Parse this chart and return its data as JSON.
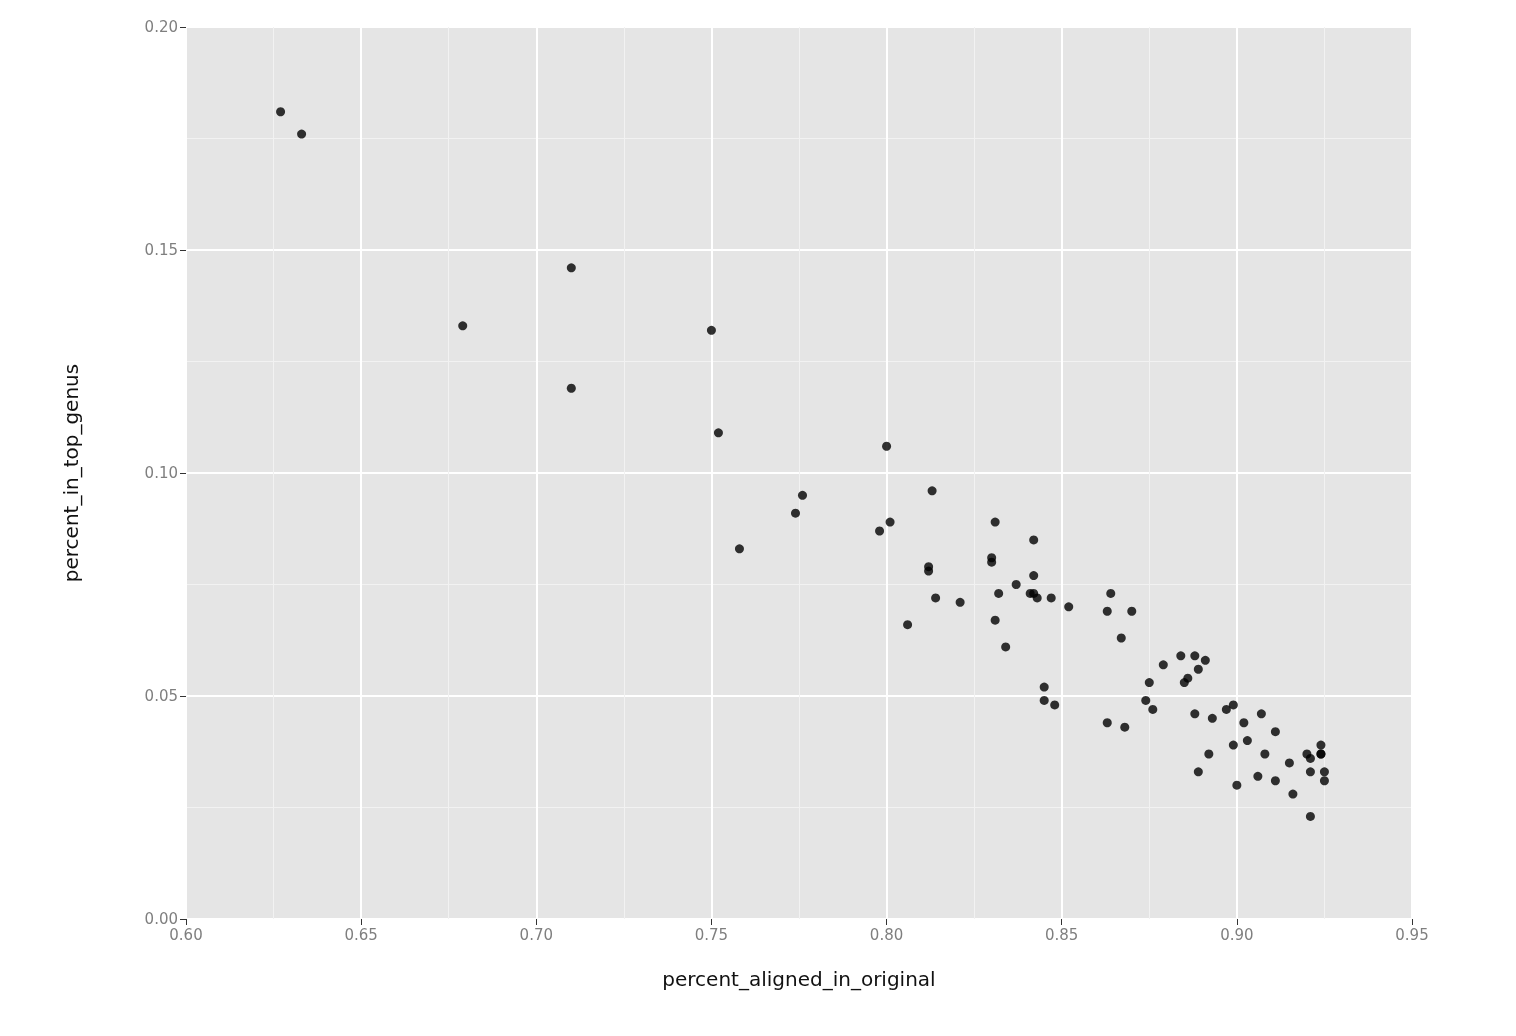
{
  "chart_data": {
    "type": "scatter",
    "xlabel": "percent_aligned_in_original",
    "ylabel": "percent_in_top_genus",
    "x": [
      0.627,
      0.633,
      0.679,
      0.71,
      0.71,
      0.75,
      0.752,
      0.758,
      0.774,
      0.776,
      0.8,
      0.798,
      0.801,
      0.813,
      0.812,
      0.812,
      0.814,
      0.806,
      0.821,
      0.83,
      0.83,
      0.831,
      0.832,
      0.831,
      0.834,
      0.837,
      0.842,
      0.842,
      0.841,
      0.842,
      0.843,
      0.847,
      0.852,
      0.845,
      0.845,
      0.848,
      0.863,
      0.868,
      0.863,
      0.864,
      0.87,
      0.867,
      0.879,
      0.884,
      0.888,
      0.891,
      0.889,
      0.886,
      0.885,
      0.875,
      0.874,
      0.876,
      0.888,
      0.893,
      0.897,
      0.899,
      0.907,
      0.902,
      0.911,
      0.899,
      0.903,
      0.908,
      0.892,
      0.889,
      0.9,
      0.906,
      0.911,
      0.915,
      0.916,
      0.92,
      0.921,
      0.921,
      0.924,
      0.924,
      0.924,
      0.925,
      0.925,
      0.921
    ],
    "values": [
      0.181,
      0.176,
      0.133,
      0.146,
      0.119,
      0.132,
      0.109,
      0.083,
      0.091,
      0.095,
      0.106,
      0.087,
      0.089,
      0.096,
      0.079,
      0.078,
      0.072,
      0.066,
      0.071,
      0.081,
      0.08,
      0.089,
      0.073,
      0.067,
      0.061,
      0.075,
      0.085,
      0.077,
      0.073,
      0.073,
      0.072,
      0.072,
      0.07,
      0.052,
      0.049,
      0.048,
      0.044,
      0.043,
      0.069,
      0.073,
      0.069,
      0.063,
      0.057,
      0.059,
      0.059,
      0.058,
      0.056,
      0.054,
      0.053,
      0.053,
      0.049,
      0.047,
      0.046,
      0.045,
      0.047,
      0.048,
      0.046,
      0.044,
      0.042,
      0.039,
      0.04,
      0.037,
      0.037,
      0.033,
      0.03,
      0.032,
      0.031,
      0.035,
      0.028,
      0.037,
      0.036,
      0.033,
      0.039,
      0.037,
      0.037,
      0.033,
      0.031,
      0.023
    ],
    "color": "#000000",
    "marker": "circle",
    "grid": true,
    "xlim": [
      0.6,
      0.95
    ],
    "xticks": [
      {
        "value": 0.6,
        "label": "0.60"
      },
      {
        "value": 0.65,
        "label": "0.65"
      },
      {
        "value": 0.7,
        "label": "0.70"
      },
      {
        "value": 0.75,
        "label": "0.75"
      },
      {
        "value": 0.8,
        "label": "0.80"
      },
      {
        "value": 0.85,
        "label": "0.85"
      },
      {
        "value": 0.9,
        "label": "0.90"
      },
      {
        "value": 0.95,
        "label": "0.95"
      }
    ],
    "ylim": [
      0.0,
      0.2
    ],
    "yticks": [
      {
        "value": 0.0,
        "label": "0.00"
      },
      {
        "value": 0.05,
        "label": "0.05"
      },
      {
        "value": 0.1,
        "label": "0.10"
      },
      {
        "value": 0.15,
        "label": "0.15"
      },
      {
        "value": 0.2,
        "label": "0.20"
      }
    ]
  }
}
